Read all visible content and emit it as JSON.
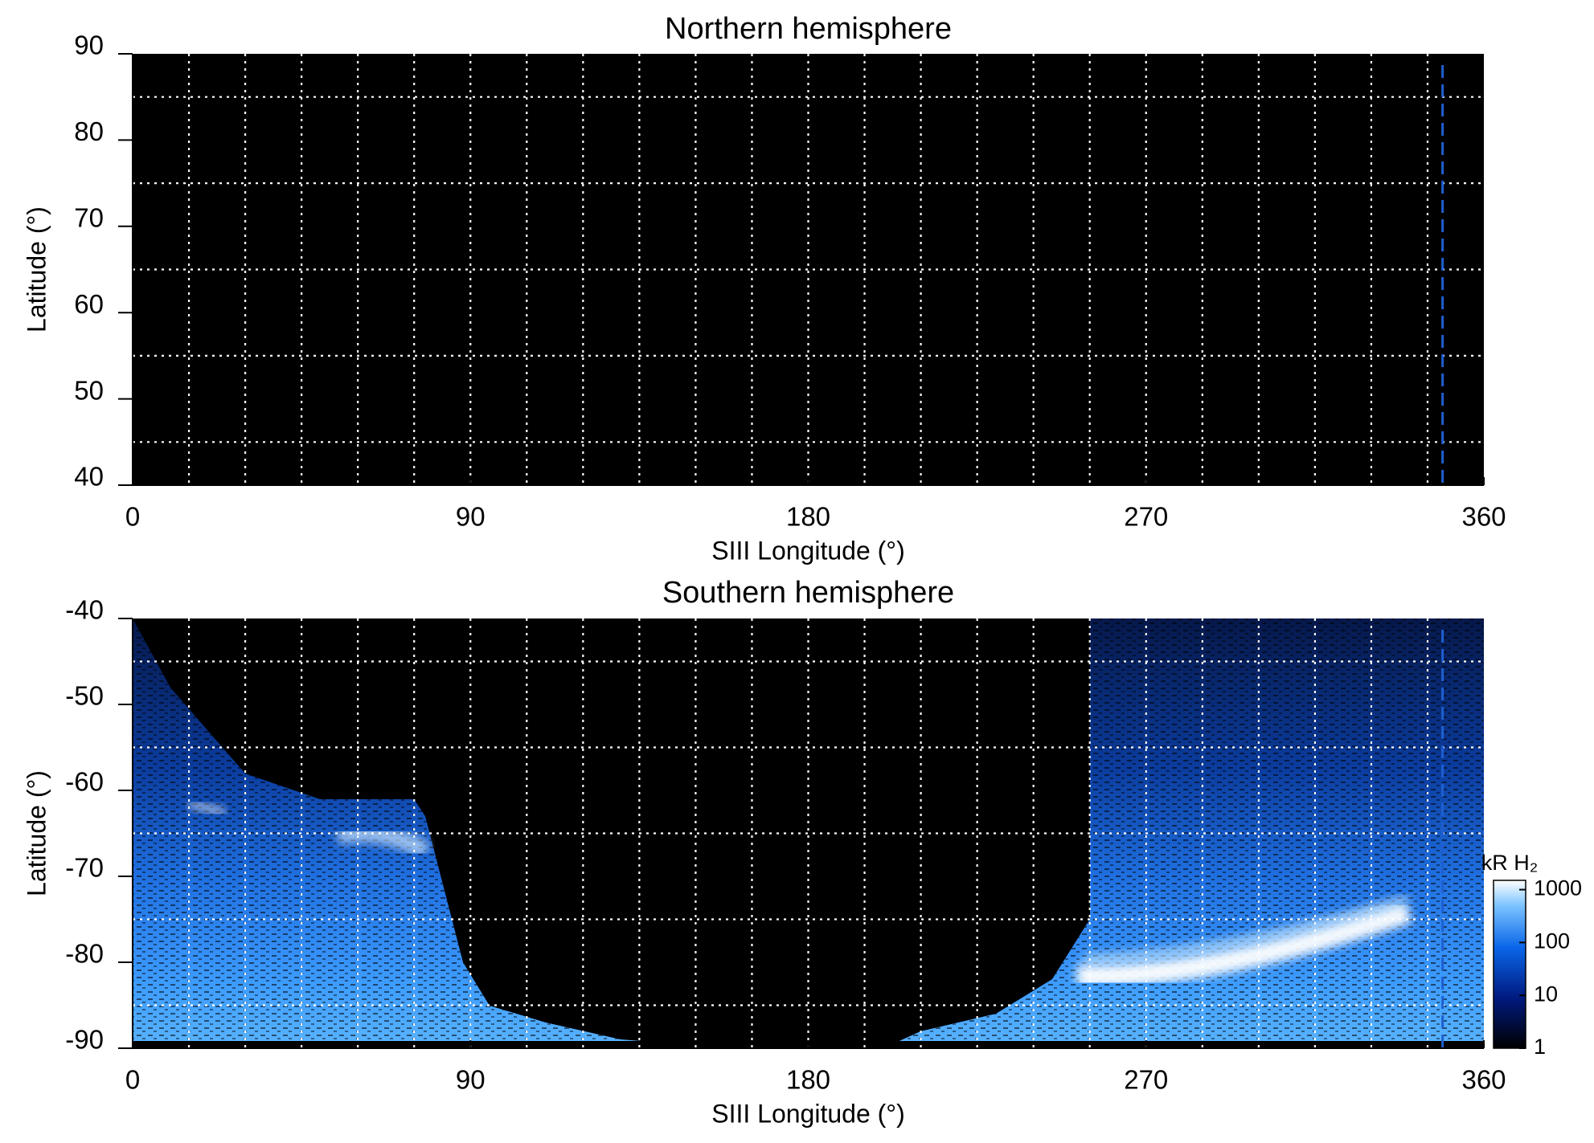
{
  "chart_data": [
    {
      "type": "heatmap",
      "title": "Northern hemisphere",
      "x_label": "SIII Longitude (°)",
      "y_label": "Latitude (°)",
      "xlim": [
        0,
        360
      ],
      "xticks": [
        0,
        90,
        180,
        270,
        360
      ],
      "xgrid": [
        15,
        30,
        45,
        60,
        75,
        90,
        105,
        120,
        135,
        150,
        165,
        180,
        195,
        210,
        225,
        240,
        255,
        270,
        285,
        300,
        315,
        330,
        345
      ],
      "ylim": [
        40,
        90
      ],
      "yticks": [
        40,
        50,
        60,
        70,
        80,
        90
      ],
      "ygrid": [
        45,
        55,
        65,
        75,
        85
      ],
      "marker_longitude": 349,
      "marker_color": "#1f5fd0"
    },
    {
      "type": "heatmap",
      "title": "Southern hemisphere",
      "x_label": "SIII Longitude (°)",
      "y_label": "Latitude (°)",
      "xlim": [
        0,
        360
      ],
      "xticks": [
        0,
        90,
        180,
        270,
        360
      ],
      "xgrid": [
        15,
        30,
        45,
        60,
        75,
        90,
        105,
        120,
        135,
        150,
        165,
        180,
        195,
        210,
        225,
        240,
        255,
        270,
        285,
        300,
        315,
        330,
        345
      ],
      "ylim": [
        -90,
        -40
      ],
      "yticks": [
        -90,
        -80,
        -70,
        -60,
        -50,
        -40
      ],
      "ygrid": [
        -85,
        -75,
        -65,
        -55,
        -45
      ],
      "marker_longitude": 349,
      "marker_color": "#1f5fd0",
      "colorbar": {
        "label": "kR H₂",
        "lim": [
          1,
          1500
        ],
        "ticks": [
          1,
          10,
          100,
          1000
        ],
        "log": true
      }
    }
  ]
}
